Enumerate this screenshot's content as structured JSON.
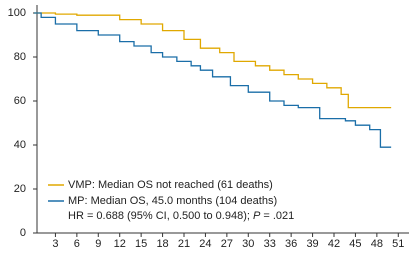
{
  "chart_data": {
    "type": "step",
    "series": [
      {
        "name": "VMP: Median OS not reached (61 deaths)",
        "color": "#e0a800",
        "x": [
          0,
          3,
          6,
          12,
          15,
          18,
          21,
          23.3,
          26,
          28,
          31,
          33,
          35,
          37,
          39,
          41,
          43,
          44,
          50
        ],
        "values": [
          100,
          99.5,
          99,
          97,
          95,
          92,
          88,
          84,
          82,
          78,
          76,
          74,
          72,
          70,
          68,
          66,
          63,
          57,
          57
        ]
      },
      {
        "name": "MP: Median OS, 45.0 months (104 deaths)",
        "color": "#1a6ea8",
        "x": [
          0,
          1,
          3,
          6,
          9,
          12,
          14,
          16.4,
          18,
          20,
          22,
          23.3,
          25,
          27.5,
          30,
          33,
          35,
          37,
          40,
          43.6,
          45,
          47,
          48.5,
          50
        ],
        "values": [
          100,
          98,
          95,
          92,
          90,
          87,
          85,
          82,
          80,
          78,
          76,
          74,
          71,
          67,
          64,
          60,
          58,
          57,
          52,
          51,
          49,
          47,
          39,
          39
        ]
      }
    ],
    "annotation": {
      "hr": "HR = 0.688 (95% CI, 0.500 to 0.948); ",
      "p": "P",
      "p_value": " = .021"
    },
    "xlim": [
      0,
      52.5
    ],
    "ylim": [
      0,
      100
    ],
    "xticks": [
      3,
      6,
      9,
      12,
      15,
      18,
      21,
      24,
      27,
      30,
      33,
      36,
      39,
      42,
      45,
      48,
      51
    ],
    "yticks": [
      0,
      20,
      40,
      60,
      80,
      100
    ]
  }
}
